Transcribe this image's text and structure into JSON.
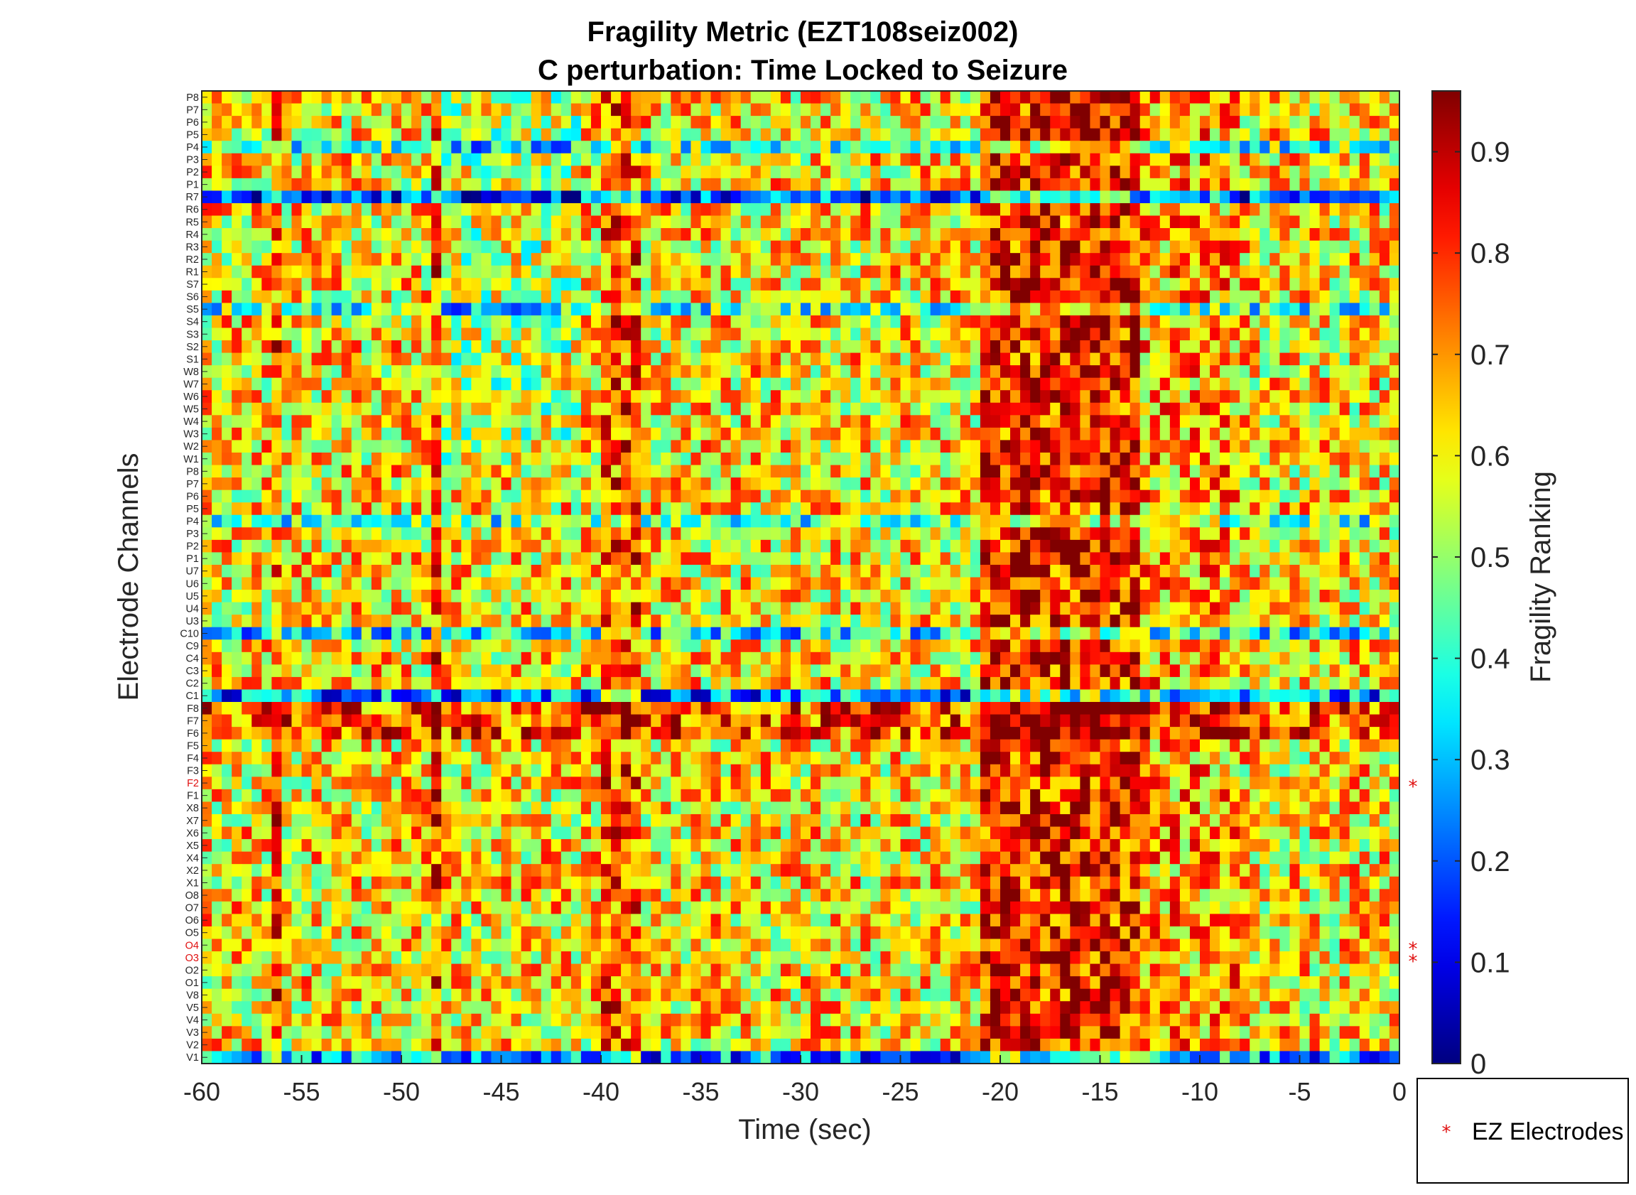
{
  "chart_data": {
    "type": "heatmap",
    "title": [
      "Fragility Metric (EZT108seiz002)",
      "C perturbation:  Time Locked to Seizure"
    ],
    "xlabel": "Time (sec)",
    "ylabel": "Electrode Channels",
    "colorbar_label": "Fragility Ranking",
    "colormap": "jet",
    "xlim": [
      -60,
      0
    ],
    "x_ticks": [
      -60,
      -55,
      -50,
      -45,
      -40,
      -35,
      -30,
      -25,
      -20,
      -15,
      -10,
      -5,
      0
    ],
    "x_tick_labels": [
      "-60",
      "-55",
      "-50",
      "-45",
      "-40",
      "-35",
      "-30",
      "-25",
      "-20",
      "-15",
      "-10",
      "-5",
      "0"
    ],
    "clim": [
      0,
      0.96
    ],
    "colorbar_ticks": [
      0,
      0.1,
      0.2,
      0.3,
      0.4,
      0.5,
      0.6,
      0.7,
      0.8,
      0.9
    ],
    "colorbar_tick_labels": [
      "0",
      "0.1",
      "0.2",
      "0.3",
      "0.4",
      "0.5",
      "0.6",
      "0.7",
      "0.8",
      "0.9"
    ],
    "time_bins": 120,
    "channels_top_to_bottom": [
      "P8",
      "P7",
      "P6",
      "P5",
      "P4",
      "P3",
      "P2",
      "P1",
      "R7",
      "R6",
      "R5",
      "R4",
      "R3",
      "R2",
      "R1",
      "S7",
      "S6",
      "S5",
      "S4",
      "S3",
      "S2",
      "S1",
      "W8",
      "W7",
      "W6",
      "W5",
      "W4",
      "W3",
      "W2",
      "W1",
      "P8",
      "P7",
      "P6",
      "P5",
      "P4",
      "P3",
      "P2",
      "P1",
      "U7",
      "U6",
      "U5",
      "U4",
      "U3",
      "C10",
      "C9",
      "C4",
      "C3",
      "C2",
      "C1",
      "F8",
      "F7",
      "F6",
      "F5",
      "F4",
      "F3",
      "F2",
      "F1",
      "X8",
      "X7",
      "X6",
      "X5",
      "X4",
      "X2",
      "X1",
      "O8",
      "O7",
      "O6",
      "O5",
      "O4",
      "O3",
      "O2",
      "O1",
      "V8",
      "V5",
      "V4",
      "V3",
      "V2",
      "V1"
    ],
    "ez_channels": [
      "F2",
      "O4",
      "O3"
    ],
    "channel_mean_fragility": {
      "R7": 0.2,
      "C1": 0.25,
      "C10": 0.35,
      "P4": 0.42,
      "S5": 0.42,
      "V1": 0.25
    },
    "high_fragility_time_ranges_sec": [
      [
        -21,
        -13
      ],
      [
        -40,
        -38
      ],
      [
        -56.5,
        -56
      ],
      [
        -48.5,
        -48
      ]
    ],
    "legend": {
      "entries": [
        "EZ Electrodes"
      ],
      "marker": "*",
      "color": "#e01010",
      "placement": "outside-bottom-right"
    },
    "grid": false
  },
  "colors": {
    "ez_label": "#e01010",
    "axes": "#262626"
  }
}
